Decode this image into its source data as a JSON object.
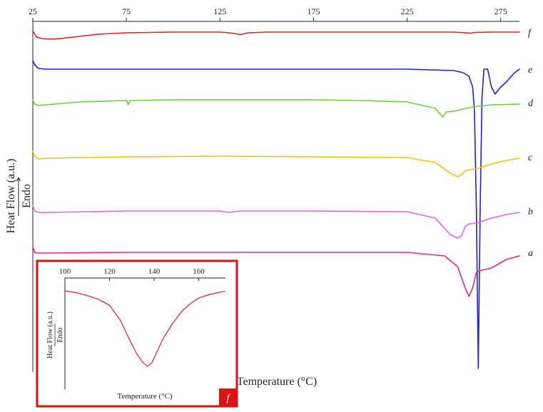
{
  "chart_data": [
    {
      "type": "line",
      "title": "",
      "xlabel": "Temperature (°C)",
      "ylabel": "Heat Flow (a.u.)",
      "ylabel_arrow": "Endo",
      "x_ticks": [
        25,
        75,
        125,
        175,
        225,
        275
      ],
      "xlim": [
        25,
        285
      ],
      "grid": false,
      "series": [
        {
          "name": "f",
          "color": "#ee1c24",
          "offset": 0,
          "x": [
            25,
            27,
            30,
            35,
            40,
            50,
            60,
            75,
            100,
            125,
            130,
            136,
            140,
            150,
            200,
            250,
            259,
            261,
            270,
            285
          ],
          "y": [
            1.5,
            -7,
            -9,
            -10,
            -9,
            -6,
            -3,
            -1,
            0,
            0,
            -1,
            -3.5,
            -1,
            0,
            0,
            0,
            -1.5,
            -0.5,
            0,
            0
          ]
        },
        {
          "name": "e",
          "color": "#1f1fe6",
          "offset": 0,
          "x": [
            25,
            26,
            28,
            32,
            40,
            75,
            125,
            175,
            225,
            250,
            255,
            258,
            260,
            261,
            262,
            263,
            264,
            265,
            266,
            268,
            270,
            272,
            275,
            278,
            282,
            285
          ],
          "y": [
            12,
            6,
            1,
            0,
            0,
            0,
            0,
            0,
            0,
            -2,
            -5,
            -10,
            -25,
            -60,
            -200,
            -420,
            -200,
            -40,
            0,
            0,
            -25,
            -35,
            -25,
            -18,
            -6,
            0
          ]
        },
        {
          "name": "d",
          "color": "#6ad13a",
          "offset": 0,
          "x": [
            25,
            26,
            28,
            32,
            50,
            75,
            76,
            77,
            100,
            125,
            175,
            200,
            225,
            240,
            244,
            246,
            250,
            255,
            260,
            270,
            285
          ],
          "y": [
            4,
            -2,
            -4,
            -3,
            1,
            3,
            -3,
            3,
            4,
            4,
            4,
            3,
            1,
            -8,
            -20,
            -13,
            -12,
            -9,
            -6,
            -3,
            -2
          ]
        },
        {
          "name": "c",
          "color": "#ffc000",
          "offset": 0,
          "x": [
            25,
            26,
            28,
            32,
            75,
            125,
            175,
            225,
            240,
            248,
            252,
            254,
            256,
            258,
            262,
            270,
            278,
            285
          ],
          "y": [
            8,
            1,
            -3,
            -2,
            0,
            1,
            0,
            -1,
            -8,
            -23,
            -28,
            -25,
            -20,
            -18,
            -17,
            -10,
            -5,
            -2
          ]
        },
        {
          "name": "b",
          "color": "#e464e6",
          "offset": 0,
          "x": [
            25,
            26,
            28,
            32,
            75,
            125,
            130,
            135,
            175,
            225,
            240,
            248,
            252,
            254,
            256,
            258,
            262,
            270,
            278,
            285
          ],
          "y": [
            8,
            0,
            -2,
            -2,
            0,
            0,
            -2,
            0,
            0,
            -1,
            -10,
            -33,
            -38,
            -35,
            -22,
            -18,
            -17,
            -10,
            -5,
            -2
          ]
        },
        {
          "name": "a",
          "color": "#e6268c",
          "offset": 0,
          "x": [
            25,
            26,
            28,
            32,
            75,
            125,
            175,
            225,
            245,
            252,
            256,
            258,
            260,
            262,
            265,
            270,
            278,
            285
          ],
          "y": [
            8,
            0,
            -1,
            -1,
            0,
            0,
            0,
            0,
            -5,
            -20,
            -50,
            -62,
            -50,
            -28,
            -25,
            -22,
            -10,
            -5
          ]
        }
      ]
    },
    {
      "type": "line",
      "title": "",
      "xlabel": "Temperature (°C)",
      "ylabel": "Heat Flow (a.u.)",
      "ylabel_arrow": "Endo",
      "x_ticks": [
        100,
        120,
        140,
        160
      ],
      "xlim": [
        100,
        172
      ],
      "grid": false,
      "panel_label": "f",
      "series": [
        {
          "name": "f",
          "color": "#ee1c24",
          "x": [
            100,
            105,
            110,
            115,
            120,
            125,
            128,
            132,
            135,
            137,
            139,
            141,
            144,
            148,
            152,
            156,
            160,
            165,
            170,
            172
          ],
          "y": [
            0,
            -1.5,
            -4,
            -7,
            -12,
            -25,
            -37,
            -52,
            -60,
            -63,
            -60,
            -52,
            -40,
            -28,
            -18,
            -11,
            -6,
            -3,
            -1,
            -0.5
          ]
        }
      ]
    }
  ]
}
